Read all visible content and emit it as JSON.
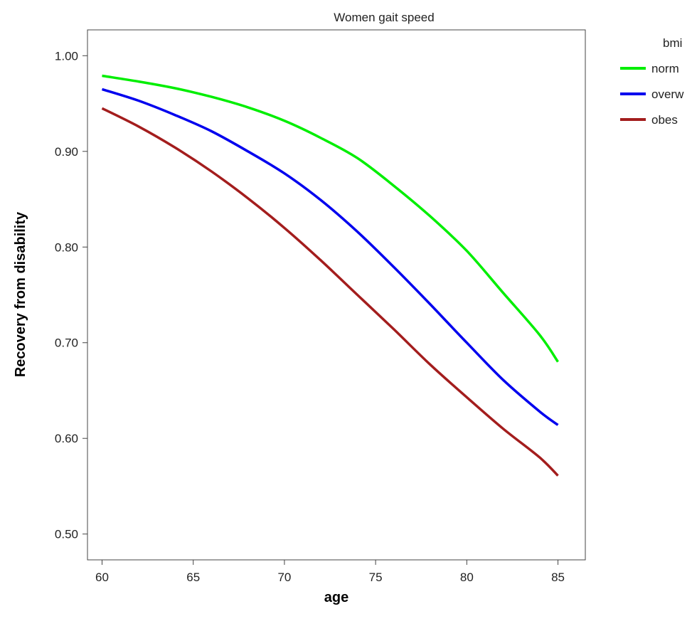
{
  "chart_data": {
    "type": "line",
    "title": "Women gait speed",
    "xlabel": "age",
    "ylabel": "Recovery from disability",
    "xlim": [
      59.2,
      86.5
    ],
    "ylim": [
      0.473,
      1.027
    ],
    "xticks": [
      "60",
      "65",
      "70",
      "75",
      "80",
      "85"
    ],
    "yticks": [
      "0.50",
      "0.60",
      "0.70",
      "0.80",
      "0.90",
      "1.00"
    ],
    "grid": false,
    "legend": {
      "title": "bmi",
      "position": "right"
    },
    "x": [
      60,
      62,
      64,
      66,
      68,
      70,
      72,
      74,
      76,
      78,
      80,
      82,
      84,
      85
    ],
    "series": [
      {
        "name": "norm",
        "color": "#00ee00",
        "values": [
          0.979,
          0.973,
          0.966,
          0.957,
          0.946,
          0.932,
          0.914,
          0.893,
          0.864,
          0.832,
          0.796,
          0.752,
          0.708,
          0.68
        ]
      },
      {
        "name": "overw",
        "color": "#0000ee",
        "values": [
          0.965,
          0.953,
          0.938,
          0.921,
          0.9,
          0.877,
          0.849,
          0.816,
          0.779,
          0.74,
          0.7,
          0.661,
          0.628,
          0.614
        ]
      },
      {
        "name": "obes",
        "color": "#a31d1d",
        "values": [
          0.945,
          0.926,
          0.904,
          0.879,
          0.851,
          0.82,
          0.786,
          0.75,
          0.714,
          0.677,
          0.643,
          0.61,
          0.58,
          0.561
        ]
      }
    ]
  }
}
